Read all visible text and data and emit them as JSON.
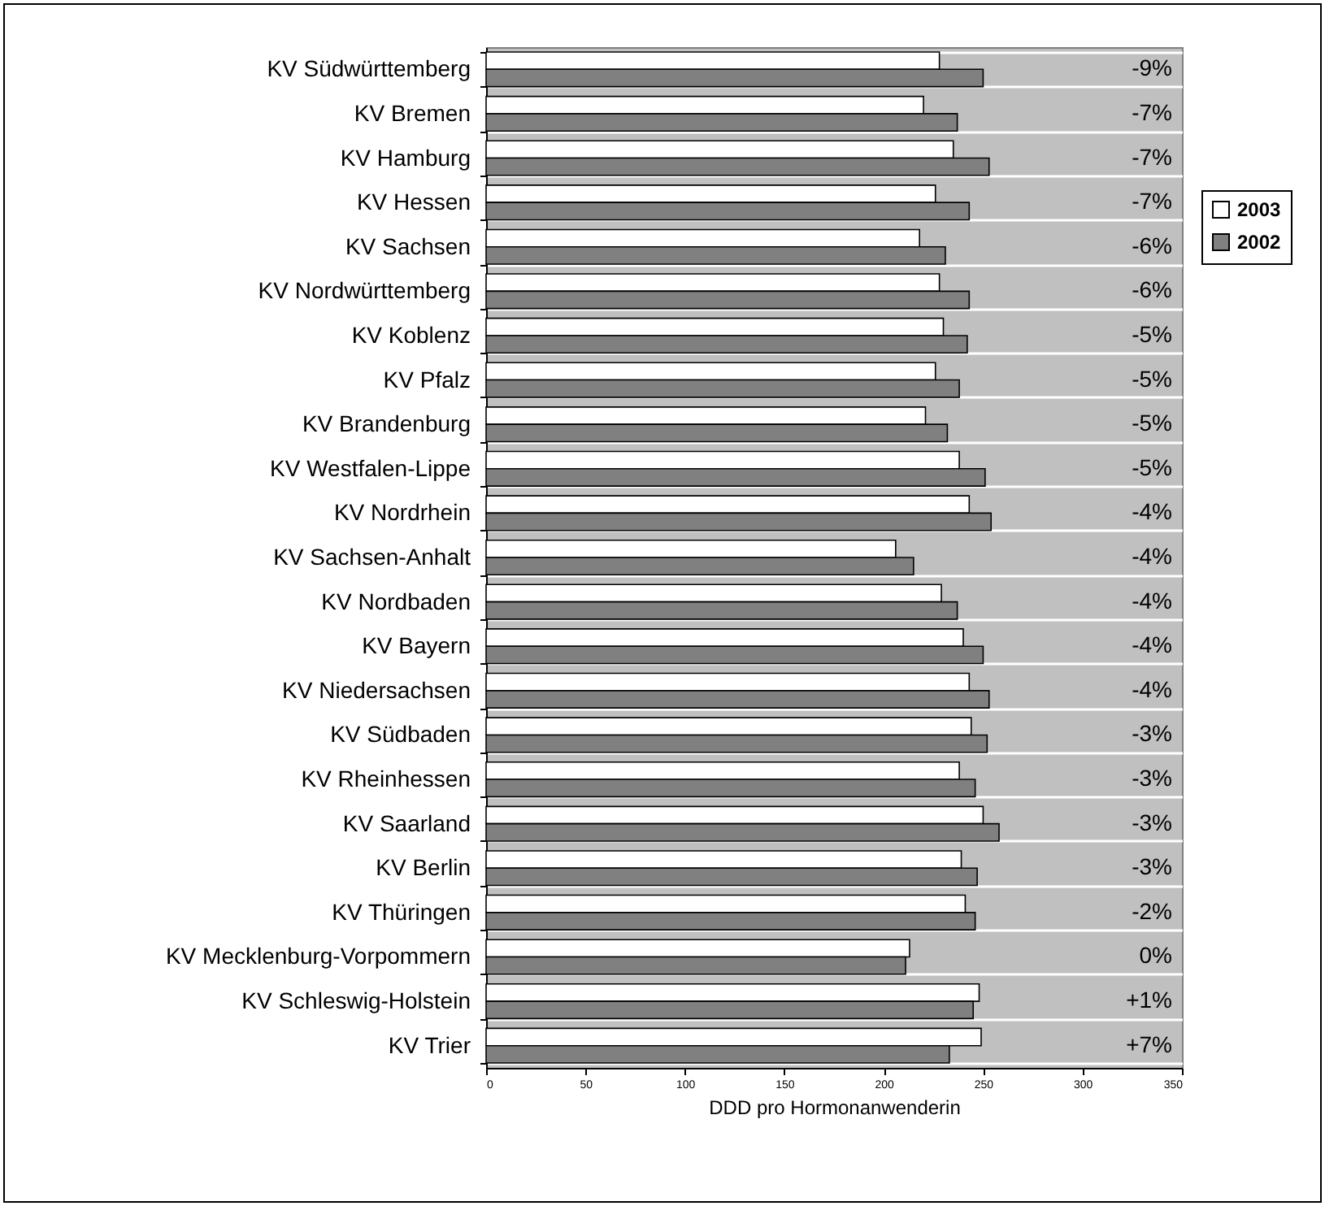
{
  "chart_data": {
    "type": "bar",
    "orientation": "horizontal",
    "xlabel": "DDD pro Hormonanwenderin",
    "categories": [
      "KV Südwürttemberg",
      "KV Bremen",
      "KV Hamburg",
      "KV Hessen",
      "KV Sachsen",
      "KV Nordwürttemberg",
      "KV Koblenz",
      "KV Pfalz",
      "KV Brandenburg",
      "KV Westfalen-Lippe",
      "KV Nordrhein",
      "KV Sachsen-Anhalt",
      "KV Nordbaden",
      "KV Bayern",
      "KV Niedersachsen",
      "KV Südbaden",
      "KV Rheinhessen",
      "KV Saarland",
      "KV Berlin",
      "KV Thüringen",
      "KV Mecklenburg-Vorpommern",
      "KV Schleswig-Holstein",
      "KV Trier"
    ],
    "series": [
      {
        "name": "2003",
        "color": "#ffffff",
        "values": [
          228,
          220,
          235,
          226,
          218,
          228,
          230,
          226,
          221,
          238,
          243,
          206,
          229,
          240,
          243,
          244,
          238,
          250,
          239,
          241,
          213,
          248,
          249
        ]
      },
      {
        "name": "2002",
        "color": "#808080",
        "values": [
          250,
          237,
          253,
          243,
          231,
          243,
          242,
          238,
          232,
          251,
          254,
          215,
          237,
          250,
          253,
          252,
          246,
          258,
          247,
          246,
          211,
          245,
          233
        ]
      }
    ],
    "xlim": [
      0,
      350
    ],
    "xticks": [
      0,
      50,
      100,
      150,
      200,
      250,
      300,
      350
    ],
    "grid": "y",
    "legend": "right",
    "annotations": [
      "-9%",
      "-7%",
      "-7%",
      "-7%",
      "-6%",
      "-6%",
      "-5%",
      "-5%",
      "-5%",
      "-5%",
      "-4%",
      "-4%",
      "-4%",
      "-4%",
      "-4%",
      "-3%",
      "-3%",
      "-3%",
      "-3%",
      "-2%",
      "0%",
      "+1%",
      "+7%"
    ]
  }
}
